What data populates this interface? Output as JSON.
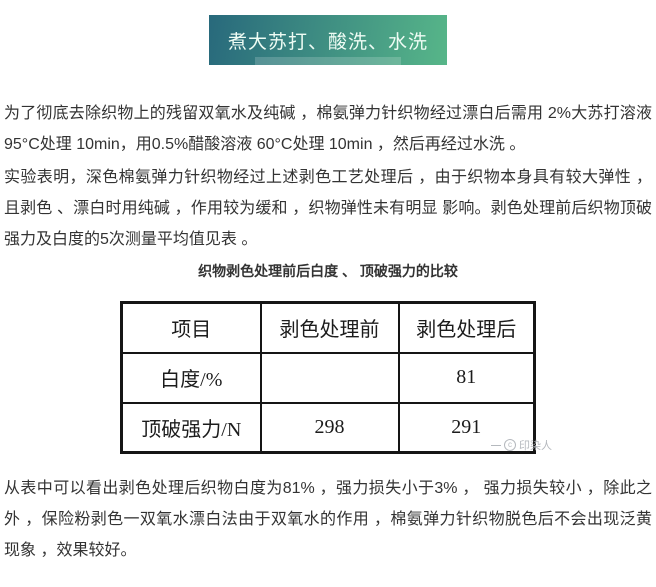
{
  "header": {
    "badge_label": "煮大苏打、酸洗、水洗",
    "gradient_start": "#28697c",
    "gradient_end": "#57b689",
    "text_color": "#eefcf4"
  },
  "paragraphs": {
    "p1": "为了彻底去除织物上的残留双氧水及纯碱 ，棉氨弹力针织物经过漂白后需用 2%大苏打溶液 95°C处理 10min，用0.5%醋酸溶液 60°C处理 10min ，然后再经过水洗 。",
    "p2": "实验表明，深色棉氨弹力针织物经过上述剥色工艺处理后 ，由于织物本身具有较大弹性 ，且剥色 、漂白时用纯碱 ，作用较为缓和 ，织物弹性未有明显 影响。剥色处理前后织物顶破强力及白度的5次测量平均值见表 。",
    "p3": "从表中可以看出剥色处理后织物白度为81% ，强力损失小于3% ， 强力损失较小 ，除此之外 ，保险粉剥色一双氧水漂白法由于双氧水的作用 ，棉氨弹力针织物脱色后不会出现泛黄现象 ，效果较好。"
  },
  "table": {
    "caption": "织物剥色处理前后白度 、 顶破强力的比较",
    "headers": [
      "项目",
      "剥色处理前",
      "剥色处理后"
    ],
    "rows": [
      {
        "label": "白度/%",
        "before": "",
        "after": "81"
      },
      {
        "label": "顶破强力/N",
        "before": "298",
        "after": "291"
      }
    ],
    "watermark": "印染人"
  }
}
